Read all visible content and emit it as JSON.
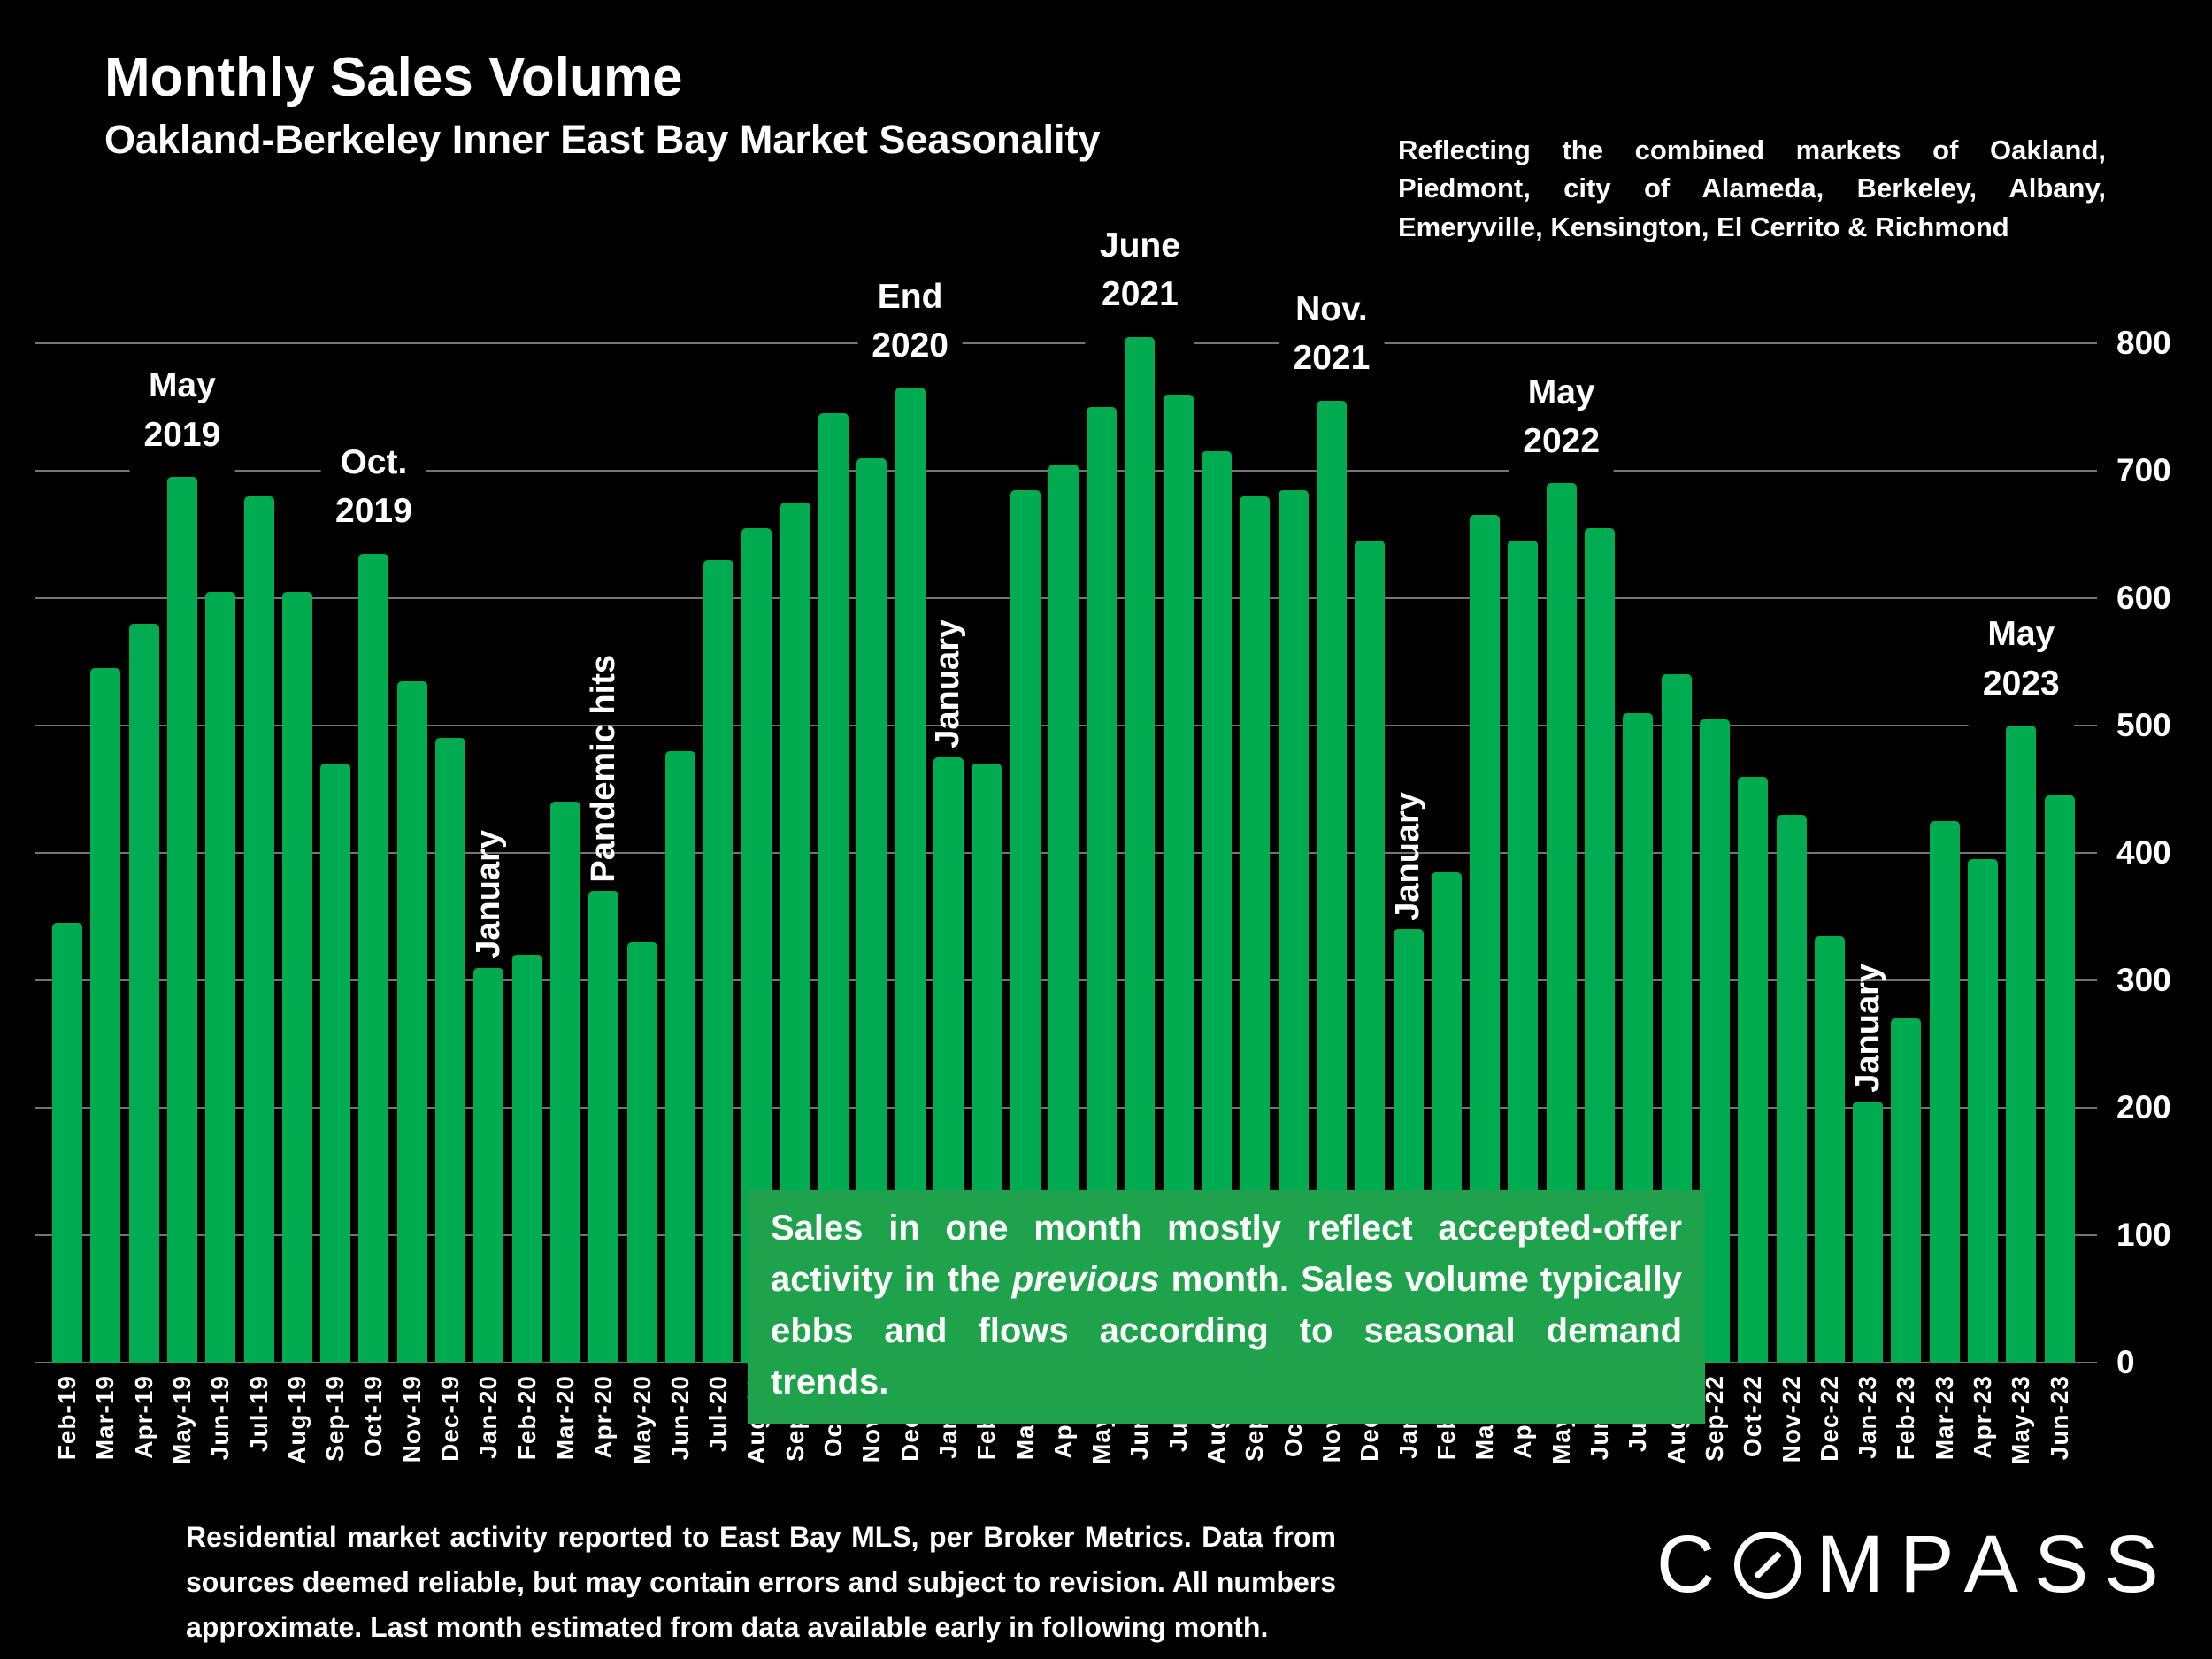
{
  "header": {
    "title": "Monthly Sales Volume",
    "subtitle": "Oakland-Berkeley Inner East Bay Market Seasonality",
    "right_note": "Reflecting the combined markets of Oakland, Piedmont, city of Alameda, Berkeley, Albany, Emeryville, Kensington, El Cerrito & Richmond"
  },
  "chart_data": {
    "type": "bar",
    "title": "Monthly Sales Volume",
    "xlabel": "",
    "ylabel": "",
    "ylim": [
      0,
      800
    ],
    "yticks": [
      0,
      100,
      200,
      300,
      400,
      500,
      600,
      700,
      800
    ],
    "grid": true,
    "bar_color": "#00AC4F",
    "gridline_color": "#747474",
    "categories": [
      "Feb-19",
      "Mar-19",
      "Apr-19",
      "May-19",
      "Jun-19",
      "Jul-19",
      "Aug-19",
      "Sep-19",
      "Oct-19",
      "Nov-19",
      "Dec-19",
      "Jan-20",
      "Feb-20",
      "Mar-20",
      "Apr-20",
      "May-20",
      "Jun-20",
      "Jul-20",
      "Aug-20",
      "Sep-20",
      "Oct-20",
      "Nov-20",
      "Dec-20",
      "Jan-21",
      "Feb-21",
      "Mar-21",
      "Apr-21",
      "May-21",
      "Jun-21",
      "Jul-21",
      "Aug-21",
      "Sep-21",
      "Oct-21",
      "Nov-21",
      "Dec-21",
      "Jan-22",
      "Feb-22",
      "Mar-22",
      "Apr-22",
      "May-22",
      "Jun-22",
      "Jul-22",
      "Aug-22",
      "Sep-22",
      "Oct-22",
      "Nov-22",
      "Dec-22",
      "Jan-23",
      "Feb-23",
      "Mar-23",
      "Apr-23",
      "May-23",
      "Jun-23"
    ],
    "values": [
      345,
      545,
      580,
      695,
      605,
      680,
      605,
      470,
      635,
      535,
      490,
      310,
      320,
      440,
      370,
      330,
      480,
      630,
      655,
      675,
      745,
      710,
      765,
      475,
      470,
      685,
      705,
      750,
      805,
      760,
      715,
      680,
      685,
      755,
      645,
      340,
      385,
      665,
      645,
      690,
      655,
      510,
      540,
      505,
      460,
      430,
      335,
      205,
      270,
      425,
      395,
      500,
      445
    ],
    "annotations": [
      {
        "label": "May\n2019",
        "month": "May-19",
        "orientation": "horizontal"
      },
      {
        "label": "Oct.\n2019",
        "month": "Oct-19",
        "orientation": "horizontal"
      },
      {
        "label": "January",
        "month": "Jan-20",
        "orientation": "vertical"
      },
      {
        "label": "Pandemic hits",
        "month": "Apr-20",
        "orientation": "vertical"
      },
      {
        "label": "End\n2020",
        "month": "Dec-20",
        "orientation": "horizontal"
      },
      {
        "label": "January",
        "month": "Jan-21",
        "orientation": "vertical"
      },
      {
        "label": "June\n2021",
        "month": "Jun-21",
        "orientation": "horizontal"
      },
      {
        "label": "Nov.\n2021",
        "month": "Nov-21",
        "orientation": "horizontal"
      },
      {
        "label": "January",
        "month": "Jan-22",
        "orientation": "vertical"
      },
      {
        "label": "May\n2022",
        "month": "May-22",
        "orientation": "horizontal"
      },
      {
        "label": "January",
        "month": "Jan-23",
        "orientation": "vertical"
      },
      {
        "label": "May\n2023",
        "month": "May-23",
        "orientation": "horizontal"
      }
    ],
    "legend_position": "none"
  },
  "callout": {
    "pre": "Sales in one month mostly reflect accepted-offer activity in the ",
    "italic": "previous",
    "post": " month. Sales volume typically ebbs and flows according to seasonal demand trends.",
    "bg_color": "#1FA24C"
  },
  "footnote": "Residential market activity reported to East Bay MLS, per Broker Metrics. Data from sources deemed reliable, but may contain errors and subject to revision. All numbers approximate. Last month estimated from data available early in following month.",
  "logo": {
    "text_left": "C",
    "text_right": "MPASS",
    "name": "COMPASS"
  }
}
